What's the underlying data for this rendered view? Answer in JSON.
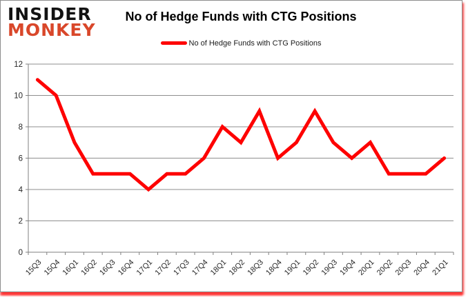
{
  "logo": {
    "line1": "INSIDER",
    "line2": "MONKEY"
  },
  "header": {
    "title": "No of Hedge Funds with CTG Positions"
  },
  "legend": {
    "label": "No of Hedge Funds with CTG Positions"
  },
  "colors": {
    "line": "#fe0000",
    "gridline": "#8e8e8e",
    "axis": "#7f7f7f",
    "axis_text": "#262626",
    "logo_black": "#121212",
    "logo_red": "#d9472a",
    "shadow_red": "#ff1e1e",
    "background": "#ffffff"
  },
  "chart_data": {
    "type": "line",
    "title": "No of Hedge Funds with CTG Positions",
    "categories": [
      "15Q3",
      "15Q4",
      "16Q1",
      "16Q2",
      "16Q3",
      "16Q4",
      "17Q1",
      "17Q2",
      "17Q3",
      "17Q4",
      "18Q1",
      "18Q2",
      "18Q3",
      "18Q4",
      "19Q1",
      "19Q2",
      "19Q3",
      "19Q4",
      "20Q1",
      "20Q2",
      "20Q3",
      "20Q4",
      "21Q1"
    ],
    "values": [
      11,
      10,
      7,
      5,
      5,
      5,
      4,
      5,
      5,
      6,
      8,
      7,
      9,
      6,
      7,
      9,
      7,
      6,
      7,
      5,
      5,
      5,
      6
    ],
    "series_name": "No of Hedge Funds with CTG Positions",
    "xlabel": "",
    "ylabel": "",
    "ylim": [
      0,
      12
    ],
    "yticks": [
      0,
      2,
      4,
      6,
      8,
      10,
      12
    ],
    "grid": true,
    "legend_position": "top",
    "x_label_rotation": -45
  }
}
